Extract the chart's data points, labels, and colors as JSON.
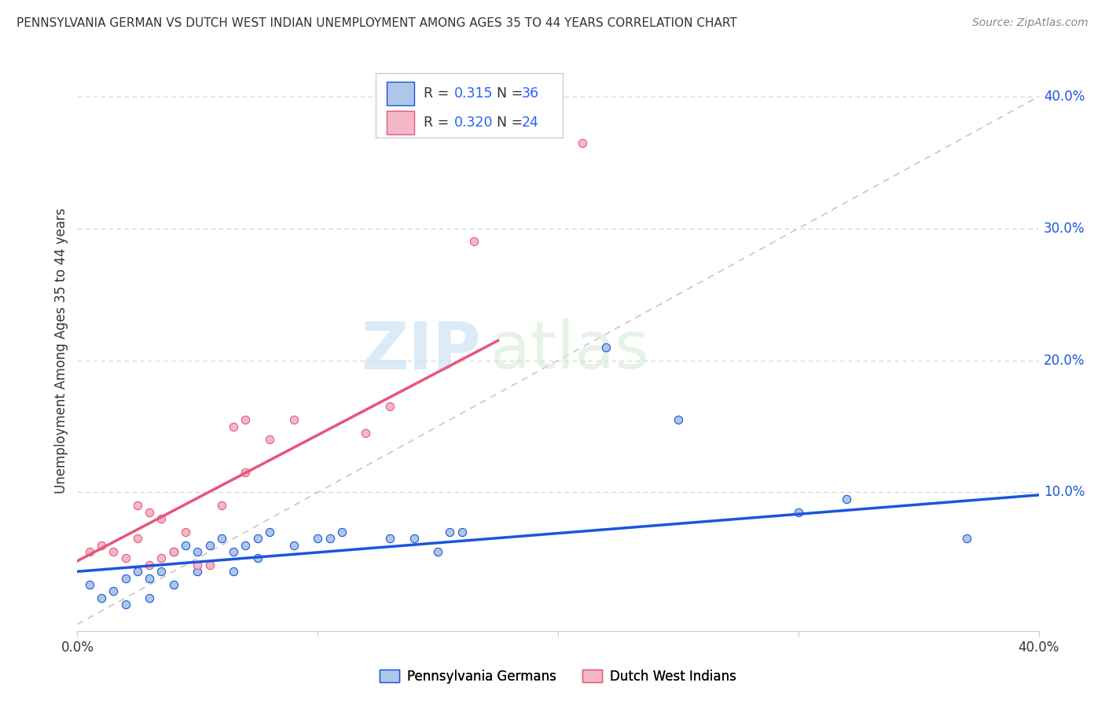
{
  "title": "PENNSYLVANIA GERMAN VS DUTCH WEST INDIAN UNEMPLOYMENT AMONG AGES 35 TO 44 YEARS CORRELATION CHART",
  "source": "Source: ZipAtlas.com",
  "ylabel": "Unemployment Among Ages 35 to 44 years",
  "xlim": [
    0.0,
    0.4
  ],
  "ylim": [
    -0.005,
    0.42
  ],
  "xticks": [
    0.0,
    0.1,
    0.2,
    0.3,
    0.4
  ],
  "xticklabels": [
    "0.0%",
    "",
    "",
    "",
    "40.0%"
  ],
  "ytick_right_labels": [
    "10.0%",
    "20.0%",
    "30.0%",
    "40.0%"
  ],
  "ytick_right_values": [
    0.1,
    0.2,
    0.3,
    0.4
  ],
  "blue_color": "#aec6e8",
  "blue_line_color": "#1a56db",
  "pink_color": "#f4b8c8",
  "pink_line_color": "#e8547a",
  "ref_line_color": "#c8c8c8",
  "watermark_zip": "ZIP",
  "watermark_atlas": "atlas",
  "legend_R1": "0.315",
  "legend_N1": "36",
  "legend_R2": "0.320",
  "legend_N2": "24",
  "blue_scatter_x": [
    0.005,
    0.01,
    0.015,
    0.02,
    0.02,
    0.025,
    0.03,
    0.03,
    0.035,
    0.04,
    0.04,
    0.045,
    0.05,
    0.05,
    0.055,
    0.06,
    0.065,
    0.065,
    0.07,
    0.075,
    0.075,
    0.08,
    0.09,
    0.1,
    0.105,
    0.11,
    0.13,
    0.14,
    0.15,
    0.155,
    0.16,
    0.22,
    0.25,
    0.3,
    0.32,
    0.37
  ],
  "blue_scatter_y": [
    0.03,
    0.02,
    0.025,
    0.035,
    0.015,
    0.04,
    0.035,
    0.02,
    0.04,
    0.055,
    0.03,
    0.06,
    0.055,
    0.04,
    0.06,
    0.065,
    0.055,
    0.04,
    0.06,
    0.065,
    0.05,
    0.07,
    0.06,
    0.065,
    0.065,
    0.07,
    0.065,
    0.065,
    0.055,
    0.07,
    0.07,
    0.21,
    0.155,
    0.085,
    0.095,
    0.065
  ],
  "pink_scatter_x": [
    0.005,
    0.01,
    0.015,
    0.02,
    0.025,
    0.025,
    0.03,
    0.03,
    0.035,
    0.035,
    0.04,
    0.045,
    0.05,
    0.055,
    0.06,
    0.065,
    0.07,
    0.07,
    0.08,
    0.09,
    0.12,
    0.13,
    0.165,
    0.21
  ],
  "pink_scatter_y": [
    0.055,
    0.06,
    0.055,
    0.05,
    0.065,
    0.09,
    0.045,
    0.085,
    0.05,
    0.08,
    0.055,
    0.07,
    0.045,
    0.045,
    0.09,
    0.15,
    0.115,
    0.155,
    0.14,
    0.155,
    0.145,
    0.165,
    0.29,
    0.365
  ],
  "blue_trend_x": [
    0.0,
    0.4
  ],
  "blue_trend_y": [
    0.04,
    0.098
  ],
  "pink_trend_x": [
    0.0,
    0.175
  ],
  "pink_trend_y": [
    0.048,
    0.215
  ],
  "background_color": "#ffffff",
  "grid_color": "#d0d0d0",
  "legend_value_color": "#2962ff",
  "text_color": "#333333",
  "source_color": "#888888"
}
